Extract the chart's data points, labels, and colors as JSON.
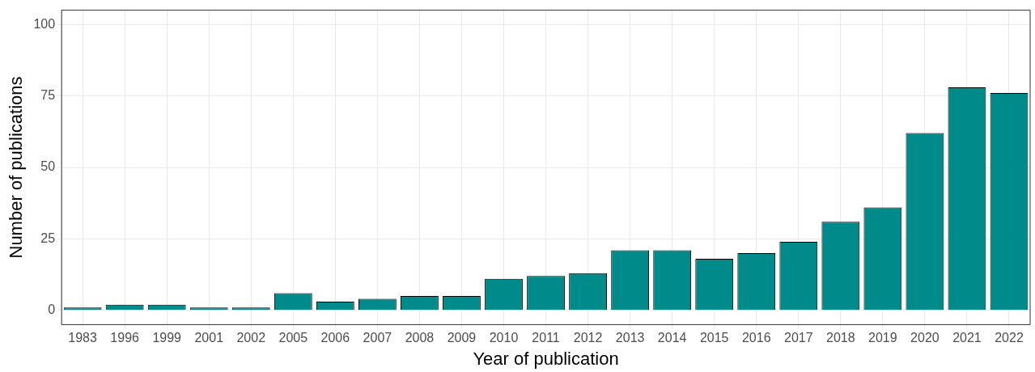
{
  "chart_data": {
    "type": "bar",
    "xlabel": "Year of publication",
    "ylabel": "Number of publications",
    "categories": [
      "1983",
      "1996",
      "1999",
      "2001",
      "2002",
      "2005",
      "2006",
      "2007",
      "2008",
      "2009",
      "2010",
      "2011",
      "2012",
      "2013",
      "2014",
      "2015",
      "2016",
      "2017",
      "2018",
      "2019",
      "2020",
      "2021",
      "2022"
    ],
    "values": [
      1,
      2,
      2,
      1,
      1,
      6,
      3,
      4,
      5,
      5,
      11,
      12,
      13,
      21,
      21,
      18,
      20,
      24,
      31,
      36,
      62,
      78,
      76
    ],
    "color": "#008b8b",
    "ylim": [
      -5,
      105
    ],
    "yticks": [
      0,
      25,
      50,
      75,
      100
    ],
    "grid": true
  }
}
